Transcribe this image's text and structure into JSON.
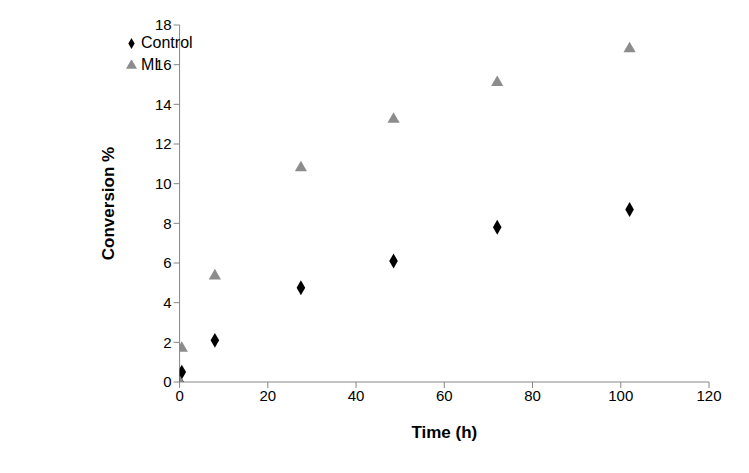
{
  "chart_data": {
    "type": "scatter",
    "x_label": "Time (h)",
    "y_label": "Conversion %",
    "x": [
      0,
      0.5,
      8,
      27.5,
      48.5,
      72,
      102
    ],
    "series": [
      {
        "name": "Control",
        "color": "#000000",
        "marker": "diamond",
        "values": [
          0,
          0.5,
          2.1,
          4.75,
          6.1,
          7.8,
          8.7
        ]
      },
      {
        "name": "MI",
        "color": "#8c8c8c",
        "marker": "triangle",
        "values": [
          0,
          1.7,
          5.35,
          10.8,
          13.25,
          15.1,
          16.8
        ]
      }
    ],
    "xlim": [
      0,
      120
    ],
    "xticks": [
      0,
      20,
      40,
      60,
      80,
      100,
      120
    ],
    "ylim": [
      0,
      18
    ],
    "yticks": [
      0,
      2,
      4,
      6,
      8,
      10,
      12,
      14,
      16,
      18
    ],
    "grid": false,
    "legend": "top-left"
  }
}
